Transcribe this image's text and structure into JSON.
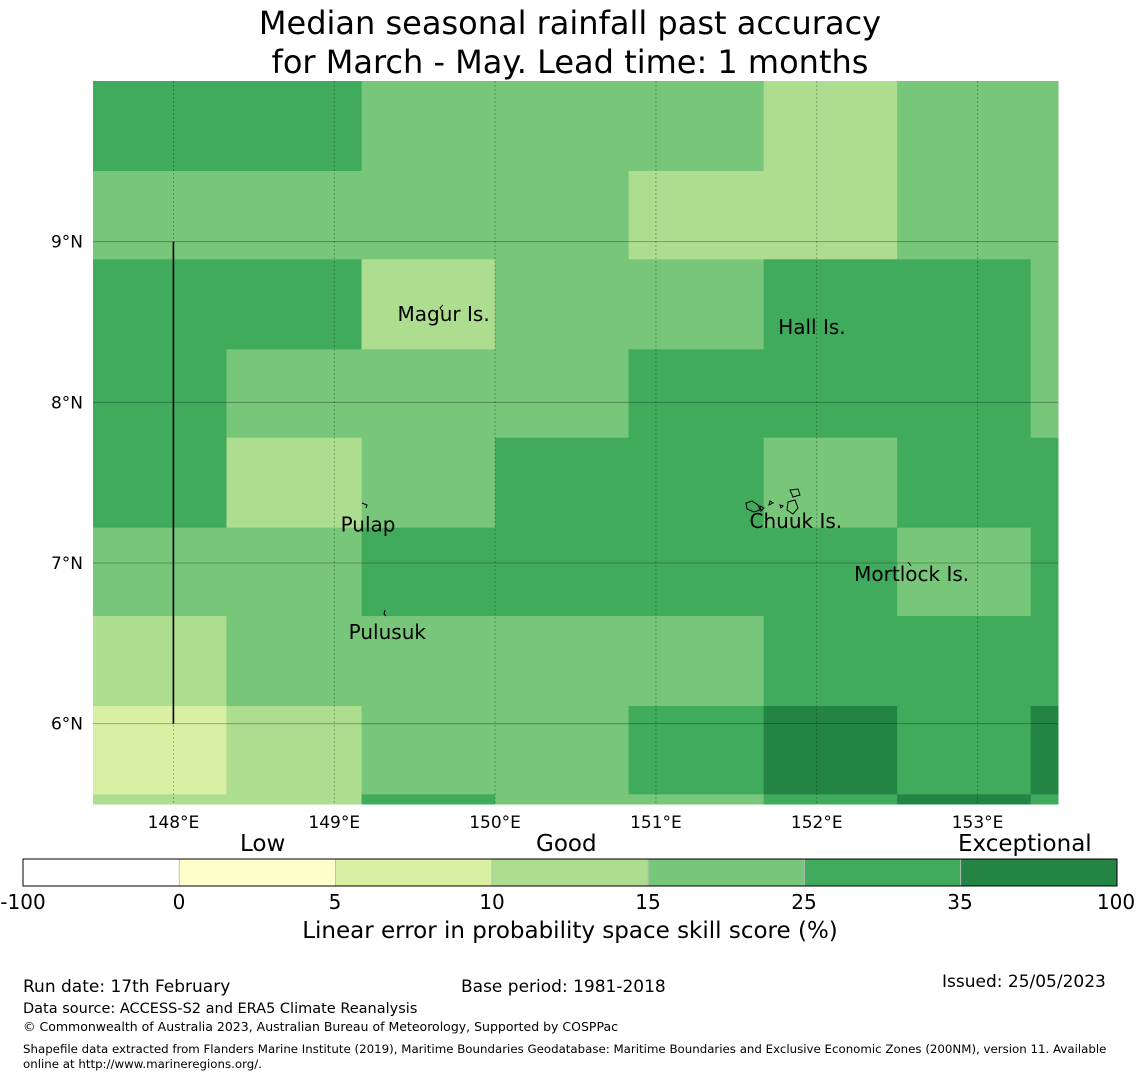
{
  "title": {
    "line1": "Median seasonal rainfall past accuracy",
    "line2": "for March - May. Lead time: 1 months"
  },
  "map": {
    "lon_range": [
      147.5,
      153.5
    ],
    "lat_range": [
      5.5,
      10.0
    ],
    "lon_ticks": [
      {
        "value": 148,
        "label": "148°E"
      },
      {
        "value": 149,
        "label": "149°E"
      },
      {
        "value": 150,
        "label": "150°E"
      },
      {
        "value": 151,
        "label": "151°E"
      },
      {
        "value": 152,
        "label": "152°E"
      },
      {
        "value": 153,
        "label": "153°E"
      }
    ],
    "lat_ticks": [
      {
        "value": 9,
        "label": "9°N"
      },
      {
        "value": 8,
        "label": "8°N"
      },
      {
        "value": 7,
        "label": "7°N"
      },
      {
        "value": 6,
        "label": "6°N"
      }
    ],
    "grid_lon_edges": [
      147.5,
      148.33,
      149.17,
      150.0,
      150.83,
      151.67,
      152.5,
      153.33,
      153.5
    ],
    "grid_lat_edges": [
      10.0,
      9.44,
      8.89,
      8.33,
      7.78,
      7.22,
      6.67,
      6.11,
      5.56,
      5.5
    ],
    "skill_category_rows": [
      [
        5,
        5,
        4,
        4,
        4,
        3,
        4,
        4
      ],
      [
        4,
        4,
        4,
        4,
        3,
        3,
        4,
        4
      ],
      [
        5,
        5,
        3,
        4,
        4,
        5,
        5,
        4
      ],
      [
        5,
        4,
        4,
        4,
        5,
        5,
        5,
        4
      ],
      [
        5,
        3,
        4,
        5,
        5,
        4,
        5,
        5
      ],
      [
        4,
        4,
        5,
        5,
        5,
        5,
        4,
        5
      ],
      [
        3,
        4,
        4,
        4,
        4,
        5,
        5,
        5
      ],
      [
        2,
        3,
        4,
        4,
        5,
        6,
        5,
        6
      ],
      [
        3,
        3,
        5,
        4,
        4,
        5,
        6,
        5
      ]
    ],
    "boundary_line": {
      "lon": 148.0,
      "lat_from": 9.0,
      "lat_to": 6.0
    },
    "islands": [
      {
        "name": "Magur Is.",
        "lon": 149.68,
        "lat": 8.55
      },
      {
        "name": "Hall Is.",
        "lon": 151.97,
        "lat": 8.47
      },
      {
        "name": "Pulap",
        "lon": 149.21,
        "lat": 7.24
      },
      {
        "name": "Chuuk Is.",
        "lon": 151.87,
        "lat": 7.26
      },
      {
        "name": "Mortlock Is.",
        "lon": 152.59,
        "lat": 6.93
      },
      {
        "name": "Pulusuk",
        "lon": 149.33,
        "lat": 6.57
      }
    ]
  },
  "colorbar": {
    "headings": [
      "Low",
      "Good",
      "Exceptional"
    ],
    "bounds": [
      "-100",
      "0",
      "5",
      "10",
      "15",
      "25",
      "35",
      "100"
    ],
    "colors": [
      "#ffffff",
      "#ffffcc",
      "#d9f0a3",
      "#addd8e",
      "#78c679",
      "#41ab5d",
      "#238443"
    ],
    "label": "Linear error in probability space skill score (%)"
  },
  "footer": {
    "run_date": "Run date: 17th February",
    "base_period": "Base period: 1981-2018",
    "issued": "Issued: 25/05/2023",
    "data_source": "Data source: ACCESS-S2 and ERA5 Climate Reanalysis",
    "copyright": "© Commonwealth of Australia 2023, Australian Bureau of Meteorology, Supported by COSPPac",
    "shapefile": "Shapefile data extracted from Flanders Marine Institute (2019), Maritime Boundaries Geodatabase: Maritime Boundaries and Exclusive Economic Zones (200NM), version 11. Available online at http://www.marineregions.org/."
  }
}
